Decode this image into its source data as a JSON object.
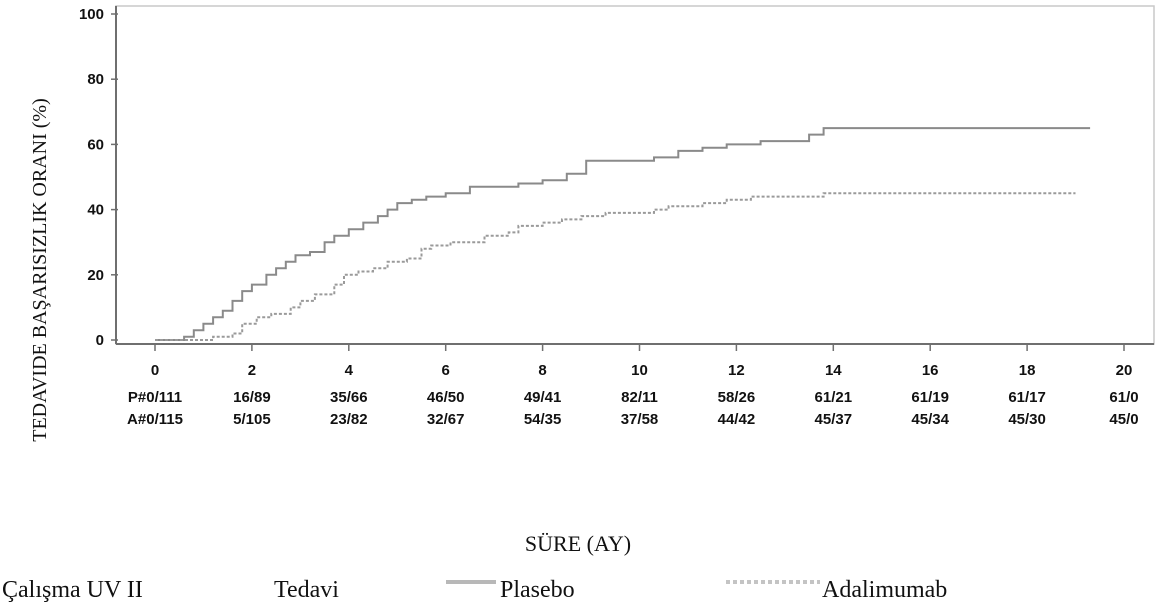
{
  "chart_data": {
    "type": "line",
    "xlabel": "SÜRE (AY)",
    "ylabel": "TEDAVIDE BAŞARISIZLIK ORANI (%)",
    "xlim": [
      0,
      20
    ],
    "ylim": [
      0,
      100
    ],
    "x_ticks": [
      "0",
      "2",
      "4",
      "6",
      "8",
      "10",
      "12",
      "14",
      "16",
      "18",
      "20"
    ],
    "y_ticks": [
      "0",
      "20",
      "40",
      "60",
      "80",
      "100"
    ],
    "grid": false,
    "series": [
      {
        "name": "Plasebo",
        "style": "solid",
        "color": "#8a8a8a",
        "steps": [
          [
            0,
            0
          ],
          [
            0.6,
            1
          ],
          [
            0.8,
            3
          ],
          [
            1.0,
            5
          ],
          [
            1.2,
            7
          ],
          [
            1.4,
            9
          ],
          [
            1.6,
            12
          ],
          [
            1.8,
            15
          ],
          [
            2.0,
            17
          ],
          [
            2.3,
            20
          ],
          [
            2.5,
            22
          ],
          [
            2.7,
            24
          ],
          [
            2.9,
            26
          ],
          [
            3.2,
            27
          ],
          [
            3.5,
            30
          ],
          [
            3.7,
            32
          ],
          [
            4.0,
            34
          ],
          [
            4.3,
            36
          ],
          [
            4.6,
            38
          ],
          [
            4.8,
            40
          ],
          [
            5.0,
            42
          ],
          [
            5.3,
            43
          ],
          [
            5.6,
            44
          ],
          [
            6.0,
            45
          ],
          [
            6.5,
            47
          ],
          [
            7.5,
            48
          ],
          [
            8.0,
            49
          ],
          [
            8.5,
            51
          ],
          [
            8.9,
            55
          ],
          [
            10.3,
            56
          ],
          [
            10.8,
            58
          ],
          [
            11.3,
            59
          ],
          [
            11.8,
            60
          ],
          [
            12.5,
            61
          ],
          [
            13.5,
            63
          ],
          [
            13.8,
            65
          ],
          [
            19.3,
            65
          ]
        ]
      },
      {
        "name": "Adalimumab",
        "style": "dotted",
        "color": "#9a9a9a",
        "steps": [
          [
            0,
            0
          ],
          [
            1.2,
            1
          ],
          [
            1.6,
            2
          ],
          [
            1.8,
            5
          ],
          [
            2.1,
            7
          ],
          [
            2.4,
            8
          ],
          [
            2.8,
            10
          ],
          [
            3.0,
            12
          ],
          [
            3.3,
            14
          ],
          [
            3.7,
            17
          ],
          [
            3.9,
            20
          ],
          [
            4.2,
            21
          ],
          [
            4.5,
            22
          ],
          [
            4.8,
            24
          ],
          [
            5.2,
            25
          ],
          [
            5.5,
            28
          ],
          [
            5.7,
            29
          ],
          [
            6.1,
            30
          ],
          [
            6.8,
            32
          ],
          [
            7.3,
            33
          ],
          [
            7.5,
            35
          ],
          [
            8.0,
            36
          ],
          [
            8.4,
            37
          ],
          [
            8.8,
            38
          ],
          [
            9.3,
            39
          ],
          [
            10.3,
            40
          ],
          [
            10.6,
            41
          ],
          [
            11.3,
            42
          ],
          [
            11.8,
            43
          ],
          [
            12.3,
            44
          ],
          [
            13.8,
            45
          ],
          [
            19.0,
            45
          ]
        ]
      }
    ],
    "at_risk": {
      "rows": [
        {
          "label": "P#0/111",
          "values": [
            "16/89",
            "35/66",
            "46/50",
            "49/41",
            "82/11",
            "58/26",
            "61/21",
            "61/19",
            "61/17",
            "61/0"
          ]
        },
        {
          "label": "A#0/115",
          "values": [
            "5/105",
            "23/82",
            "32/67",
            "54/35",
            "37/58",
            "44/42",
            "45/37",
            "45/34",
            "45/30",
            "45/0"
          ]
        }
      ]
    }
  },
  "legend": {
    "study": "Çalışma UV II",
    "treatment": "Tedavi",
    "items": [
      {
        "label": "Plasebo",
        "style": "solid"
      },
      {
        "label": "Adalimumab",
        "style": "dotted"
      }
    ]
  }
}
